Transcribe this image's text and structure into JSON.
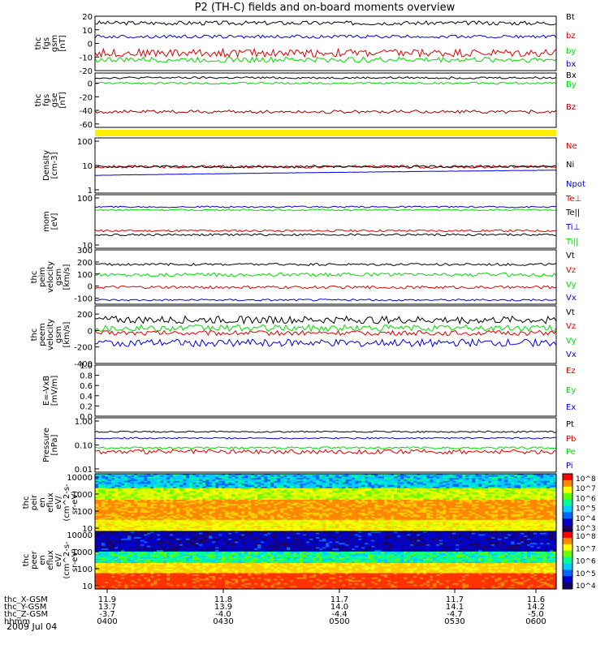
{
  "title": "P2 (TH-C) fields and on-board moments overview",
  "date_label": "2009 Jul 04",
  "colors": {
    "black": "#000000",
    "red": "#dd0000",
    "green": "#00dd00",
    "blue": "#0000dd",
    "darkred": "#990000",
    "yellow": "#ffee00"
  },
  "ephemeris": {
    "row_labels": [
      "thc_X-GSM",
      "thc_Y-GSM",
      "thc_Z-GSM",
      "hhmm"
    ],
    "times": [
      "0400",
      "0430",
      "0500",
      "0530",
      "0600"
    ],
    "x_gsm": [
      "11.9",
      "11.8",
      "11.7",
      "11.7",
      "11.6"
    ],
    "y_gsm": [
      "13.7",
      "13.9",
      "14.0",
      "14.1",
      "14.2"
    ],
    "z_gsm": [
      "-3.7",
      "-4.0",
      "-4.4",
      "-4.7",
      "-5.0"
    ]
  },
  "chart_data": [
    {
      "type": "line",
      "ylabel": [
        "thc",
        "fgs",
        "gsm",
        "[nT]"
      ],
      "ylim": [
        -20,
        20
      ],
      "yticks": [
        "20",
        "10",
        "0",
        "-10",
        "-20"
      ],
      "series": [
        {
          "name": "Bt",
          "color": "black",
          "base": 15,
          "noise": 1.5
        },
        {
          "name": "bz",
          "color": "red",
          "base": -7,
          "noise": 3
        },
        {
          "name": "by",
          "color": "green",
          "base": -12,
          "noise": 2
        },
        {
          "name": "bx",
          "color": "blue",
          "base": 5,
          "noise": 1.2
        }
      ]
    },
    {
      "type": "line",
      "ylabel": [
        "thc",
        "fgs",
        "gse",
        "[nT]"
      ],
      "ylim": [
        -65,
        15
      ],
      "yticks": [
        "0",
        "-20",
        "-40",
        "-60"
      ],
      "series": [
        {
          "name": "Bx",
          "color": "black",
          "base": 8,
          "noise": 1.5
        },
        {
          "name": "By",
          "color": "green",
          "base": 0,
          "noise": 1.5
        },
        {
          "name": "Bz",
          "color": "darkred",
          "base": -42,
          "noise": 2.5
        }
      ]
    },
    {
      "type": "line",
      "log": true,
      "ylabel": [
        "Density",
        "[cm-3]"
      ],
      "ylim": [
        1,
        150
      ],
      "yticks": [
        "100",
        "10",
        "1"
      ],
      "series": [
        {
          "name": "Ne",
          "color": "red",
          "base": 11,
          "noise": 0.06
        },
        {
          "name": "Ni",
          "color": "black",
          "base": 11,
          "noise": 0.04
        },
        {
          "name": "Npot",
          "color": "blue",
          "base": 5,
          "end": 8,
          "noise": 0.005
        }
      ]
    },
    {
      "type": "line",
      "log": true,
      "ylabel": [
        "mom",
        "[eV]"
      ],
      "ylim": [
        10,
        1000
      ],
      "yticks": [
        "100",
        "10"
      ],
      "series": [
        {
          "name": "Te⊥",
          "color": "red",
          "base": 45,
          "noise": 0.04
        },
        {
          "name": "Te||",
          "color": "black",
          "base": 32,
          "noise": 0.04
        },
        {
          "name": "Ti⊥",
          "color": "blue",
          "base": 350,
          "noise": 0.03
        },
        {
          "name": "Ti||",
          "color": "green",
          "base": 270,
          "noise": 0.03
        }
      ]
    },
    {
      "type": "line",
      "ylabel": [
        "thc",
        "peim",
        "velocity",
        "gsm",
        "[km/s]"
      ],
      "ylim": [
        -150,
        300
      ],
      "yticks": [
        "300",
        "200",
        "100",
        "0",
        "-100"
      ],
      "series": [
        {
          "name": "Vt",
          "color": "black",
          "base": 180,
          "noise": 10
        },
        {
          "name": "Vz",
          "color": "red",
          "base": -10,
          "noise": 12
        },
        {
          "name": "Vy",
          "color": "green",
          "base": 95,
          "noise": 15
        },
        {
          "name": "Vx",
          "color": "blue",
          "base": -115,
          "noise": 8
        }
      ]
    },
    {
      "type": "line",
      "ylabel": [
        "thc",
        "peem",
        "velocity",
        "gsm",
        "[km/s]"
      ],
      "ylim": [
        -400,
        300
      ],
      "yticks": [
        "200",
        "0",
        "-200",
        "-400"
      ],
      "series": [
        {
          "name": "Vt",
          "color": "black",
          "base": 130,
          "noise": 45
        },
        {
          "name": "Vz",
          "color": "red",
          "base": -30,
          "noise": 30
        },
        {
          "name": "Vy",
          "color": "green",
          "base": 30,
          "noise": 40
        },
        {
          "name": "Vx",
          "color": "blue",
          "base": -150,
          "noise": 45
        }
      ]
    },
    {
      "type": "line",
      "ylabel": [
        "E=-VxB",
        "[mV/m]"
      ],
      "ylim": [
        0,
        1
      ],
      "yticks": [
        "1.0",
        "0.8",
        "0.6",
        "0.4",
        "0.2",
        "0.0"
      ],
      "series": [
        {
          "name": "Ez",
          "color": "red"
        },
        {
          "name": "Ey",
          "color": "green"
        },
        {
          "name": "Ex",
          "color": "blue"
        }
      ]
    },
    {
      "type": "line",
      "log": true,
      "ylabel": [
        "Pressure",
        "[nPa]"
      ],
      "ylim": [
        0.01,
        1.2
      ],
      "yticks": [
        "1.00",
        "0.10",
        "0.01"
      ],
      "series": [
        {
          "name": "Pt",
          "color": "black",
          "base": 0.35,
          "noise": 0.03
        },
        {
          "name": "Pb",
          "color": "red",
          "base": 0.06,
          "noise": 0.09
        },
        {
          "name": "Pe",
          "color": "green",
          "base": 0.085,
          "noise": 0.04
        },
        {
          "name": "Pi",
          "color": "blue",
          "base": 0.2,
          "noise": 0.03
        }
      ]
    },
    {
      "type": "heatmap",
      "ylabel": [
        "thc",
        "peir",
        "en",
        "eflux",
        "eV/",
        "(cm^2-s-",
        "sr-eV)"
      ],
      "ylim": [
        10,
        20000
      ],
      "yticks": [
        "10000",
        "1000",
        "100",
        "10"
      ],
      "colorbar_ticks": [
        "10^8",
        "10^7",
        "10^6",
        "10^5",
        "10^4",
        "10^3"
      ]
    },
    {
      "type": "heatmap",
      "ylabel": [
        "thc",
        "peer",
        "en",
        "eflux",
        "eV/",
        "(cm^2-s-",
        "sr-eV)"
      ],
      "ylim": [
        10,
        20000
      ],
      "yticks": [
        "10000",
        "1000",
        "100",
        "10"
      ],
      "colorbar_ticks": [
        "10^8",
        "10^7",
        "10^6",
        "10^5",
        "10^4"
      ]
    }
  ]
}
